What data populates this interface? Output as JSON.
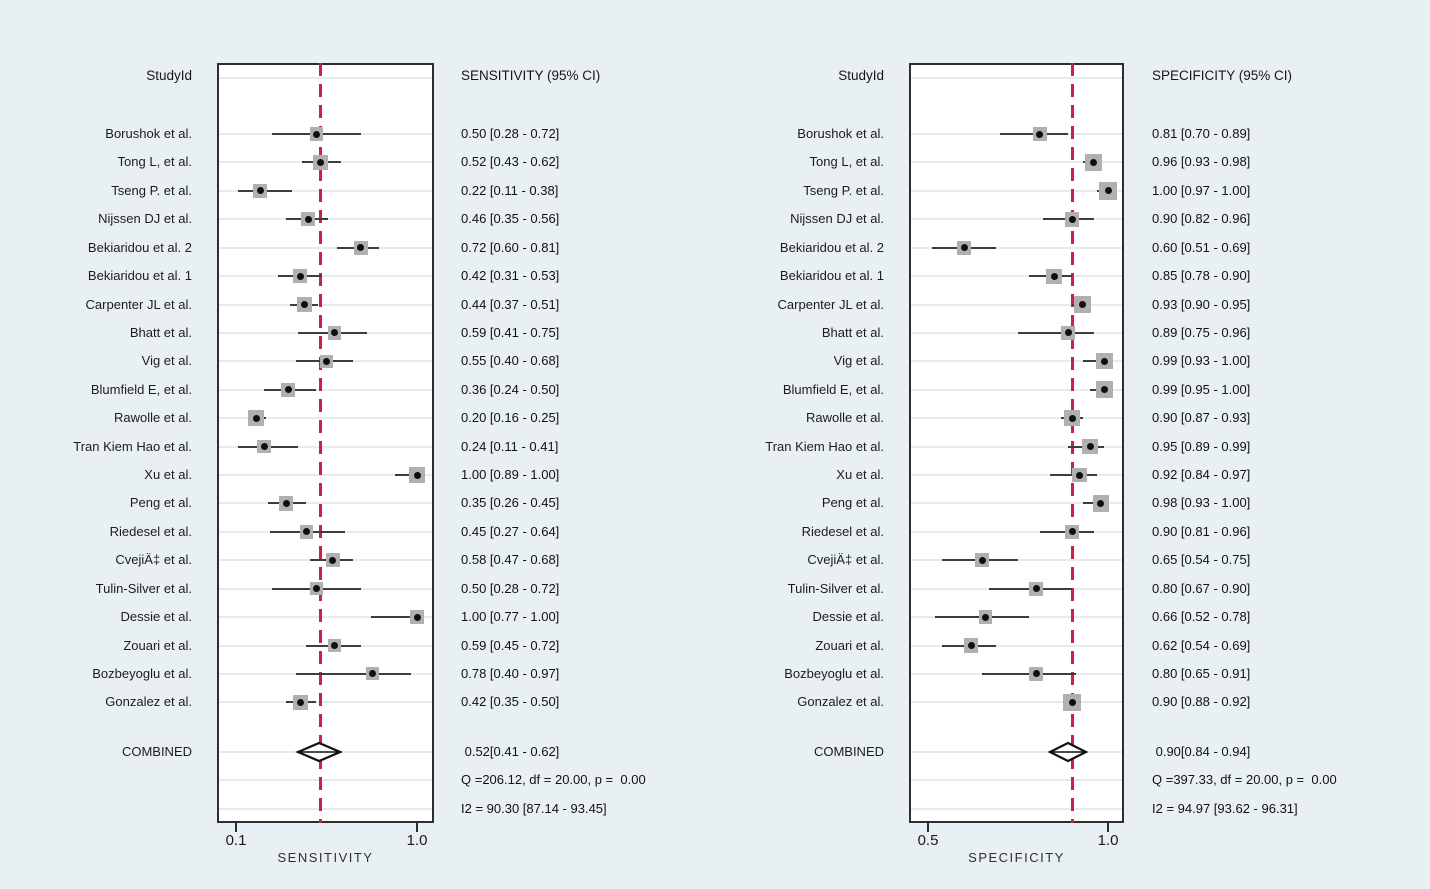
{
  "colors": {
    "background": "#e9f0f3",
    "plot_background": "#ffffff",
    "reference_line": "#c9234a",
    "marker_square": "#b0b0b0",
    "marker_dot": "#0f0f0f",
    "ci_line": "#3d3d3d",
    "gridline": "#e3edf1",
    "frame": "#2e2e2e"
  },
  "chart_data": [
    {
      "type": "forest",
      "title": "SENSITIVITY (95% CI)",
      "header_study": "StudyId",
      "header_value": "SENSITIVITY (95% CI)",
      "xlabel": "SENSITIVITY",
      "xticks": [
        {
          "value": 0.1,
          "label": "0.1"
        },
        {
          "value": 1.0,
          "label": "1.0"
        }
      ],
      "studies": [
        {
          "name": "Borushok et al.",
          "estimate": 0.5,
          "ci_low": 0.28,
          "ci_high": 0.72,
          "label": "0.50 [0.28 - 0.72]"
        },
        {
          "name": "Tong L, et al.",
          "estimate": 0.52,
          "ci_low": 0.43,
          "ci_high": 0.62,
          "label": "0.52 [0.43 - 0.62]"
        },
        {
          "name": "Tseng P. et al.",
          "estimate": 0.22,
          "ci_low": 0.11,
          "ci_high": 0.38,
          "label": "0.22 [0.11 - 0.38]"
        },
        {
          "name": "Nijssen DJ et al.",
          "estimate": 0.46,
          "ci_low": 0.35,
          "ci_high": 0.56,
          "label": "0.46 [0.35 - 0.56]"
        },
        {
          "name": "Bekiaridou et al. 2",
          "estimate": 0.72,
          "ci_low": 0.6,
          "ci_high": 0.81,
          "label": "0.72 [0.60 - 0.81]"
        },
        {
          "name": "Bekiaridou et al. 1",
          "estimate": 0.42,
          "ci_low": 0.31,
          "ci_high": 0.53,
          "label": "0.42 [0.31 - 0.53]"
        },
        {
          "name": "Carpenter JL et al.",
          "estimate": 0.44,
          "ci_low": 0.37,
          "ci_high": 0.51,
          "label": "0.44 [0.37 - 0.51]"
        },
        {
          "name": "Bhatt et al.",
          "estimate": 0.59,
          "ci_low": 0.41,
          "ci_high": 0.75,
          "label": "0.59 [0.41 - 0.75]"
        },
        {
          "name": "Vig et al.",
          "estimate": 0.55,
          "ci_low": 0.4,
          "ci_high": 0.68,
          "label": "0.55 [0.40 - 0.68]"
        },
        {
          "name": "Blumfield E, et al.",
          "estimate": 0.36,
          "ci_low": 0.24,
          "ci_high": 0.5,
          "label": "0.36 [0.24 - 0.50]"
        },
        {
          "name": "Rawolle et al.",
          "estimate": 0.2,
          "ci_low": 0.16,
          "ci_high": 0.25,
          "label": "0.20 [0.16 - 0.25]"
        },
        {
          "name": "Tran Kiem Hao et al.",
          "estimate": 0.24,
          "ci_low": 0.11,
          "ci_high": 0.41,
          "label": "0.24 [0.11 - 0.41]"
        },
        {
          "name": "Xu et al.",
          "estimate": 1.0,
          "ci_low": 0.89,
          "ci_high": 1.0,
          "label": "1.00 [0.89 - 1.00]"
        },
        {
          "name": "Peng et al.",
          "estimate": 0.35,
          "ci_low": 0.26,
          "ci_high": 0.45,
          "label": "0.35 [0.26 - 0.45]"
        },
        {
          "name": "Riedesel et al.",
          "estimate": 0.45,
          "ci_low": 0.27,
          "ci_high": 0.64,
          "label": "0.45 [0.27 - 0.64]"
        },
        {
          "name": "CvejiÄ‡ et al.",
          "estimate": 0.58,
          "ci_low": 0.47,
          "ci_high": 0.68,
          "label": "0.58 [0.47 - 0.68]"
        },
        {
          "name": "Tulin-Silver et al.",
          "estimate": 0.5,
          "ci_low": 0.28,
          "ci_high": 0.72,
          "label": "0.50 [0.28 - 0.72]"
        },
        {
          "name": "Dessie et al.",
          "estimate": 1.0,
          "ci_low": 0.77,
          "ci_high": 1.0,
          "label": "1.00 [0.77 - 1.00]"
        },
        {
          "name": "Zouari et al.",
          "estimate": 0.59,
          "ci_low": 0.45,
          "ci_high": 0.72,
          "label": "0.59 [0.45 - 0.72]"
        },
        {
          "name": "Bozbeyoglu et al.",
          "estimate": 0.78,
          "ci_low": 0.4,
          "ci_high": 0.97,
          "label": "0.78 [0.40 - 0.97]"
        },
        {
          "name": "Gonzalez et al.",
          "estimate": 0.42,
          "ci_low": 0.35,
          "ci_high": 0.5,
          "label": "0.42 [0.35 - 0.50]"
        }
      ],
      "combined": {
        "name": "COMBINED",
        "estimate": 0.52,
        "ci_low": 0.41,
        "ci_high": 0.62,
        "label": " 0.52[0.41 - 0.62]"
      },
      "heterogeneity": [
        "Q =206.12, df = 20.00, p =  0.00",
        "I2 = 90.30 [87.14 - 93.45]"
      ]
    },
    {
      "type": "forest",
      "title": "SPECIFICITY (95% CI)",
      "header_study": "StudyId",
      "header_value": "SPECIFICITY (95% CI)",
      "xlabel": "SPECIFICITY",
      "xticks": [
        {
          "value": 0.5,
          "label": "0.5"
        },
        {
          "value": 1.0,
          "label": "1.0"
        }
      ],
      "studies": [
        {
          "name": "Borushok et al.",
          "estimate": 0.81,
          "ci_low": 0.7,
          "ci_high": 0.89,
          "label": "0.81 [0.70 - 0.89]"
        },
        {
          "name": "Tong L, et al.",
          "estimate": 0.96,
          "ci_low": 0.93,
          "ci_high": 0.98,
          "label": "0.96 [0.93 - 0.98]"
        },
        {
          "name": "Tseng P. et al.",
          "estimate": 1.0,
          "ci_low": 0.97,
          "ci_high": 1.0,
          "label": "1.00 [0.97 - 1.00]"
        },
        {
          "name": "Nijssen DJ et al.",
          "estimate": 0.9,
          "ci_low": 0.82,
          "ci_high": 0.96,
          "label": "0.90 [0.82 - 0.96]"
        },
        {
          "name": "Bekiaridou et al. 2",
          "estimate": 0.6,
          "ci_low": 0.51,
          "ci_high": 0.69,
          "label": "0.60 [0.51 - 0.69]"
        },
        {
          "name": "Bekiaridou et al. 1",
          "estimate": 0.85,
          "ci_low": 0.78,
          "ci_high": 0.9,
          "label": "0.85 [0.78 - 0.90]"
        },
        {
          "name": "Carpenter JL et al.",
          "estimate": 0.93,
          "ci_low": 0.9,
          "ci_high": 0.95,
          "label": "0.93 [0.90 - 0.95]"
        },
        {
          "name": "Bhatt et al.",
          "estimate": 0.89,
          "ci_low": 0.75,
          "ci_high": 0.96,
          "label": "0.89 [0.75 - 0.96]"
        },
        {
          "name": "Vig et al.",
          "estimate": 0.99,
          "ci_low": 0.93,
          "ci_high": 1.0,
          "label": "0.99 [0.93 - 1.00]"
        },
        {
          "name": "Blumfield E, et al.",
          "estimate": 0.99,
          "ci_low": 0.95,
          "ci_high": 1.0,
          "label": "0.99 [0.95 - 1.00]"
        },
        {
          "name": "Rawolle et al.",
          "estimate": 0.9,
          "ci_low": 0.87,
          "ci_high": 0.93,
          "label": "0.90 [0.87 - 0.93]"
        },
        {
          "name": "Tran Kiem Hao et al.",
          "estimate": 0.95,
          "ci_low": 0.89,
          "ci_high": 0.99,
          "label": "0.95 [0.89 - 0.99]"
        },
        {
          "name": "Xu et al.",
          "estimate": 0.92,
          "ci_low": 0.84,
          "ci_high": 0.97,
          "label": "0.92 [0.84 - 0.97]"
        },
        {
          "name": "Peng et al.",
          "estimate": 0.98,
          "ci_low": 0.93,
          "ci_high": 1.0,
          "label": "0.98 [0.93 - 1.00]"
        },
        {
          "name": "Riedesel et al.",
          "estimate": 0.9,
          "ci_low": 0.81,
          "ci_high": 0.96,
          "label": "0.90 [0.81 - 0.96]"
        },
        {
          "name": "CvejiÄ‡ et al.",
          "estimate": 0.65,
          "ci_low": 0.54,
          "ci_high": 0.75,
          "label": "0.65 [0.54 - 0.75]"
        },
        {
          "name": "Tulin-Silver et al.",
          "estimate": 0.8,
          "ci_low": 0.67,
          "ci_high": 0.9,
          "label": "0.80 [0.67 - 0.90]"
        },
        {
          "name": "Dessie et al.",
          "estimate": 0.66,
          "ci_low": 0.52,
          "ci_high": 0.78,
          "label": "0.66 [0.52 - 0.78]"
        },
        {
          "name": "Zouari et al.",
          "estimate": 0.62,
          "ci_low": 0.54,
          "ci_high": 0.69,
          "label": "0.62 [0.54 - 0.69]"
        },
        {
          "name": "Bozbeyoglu et al.",
          "estimate": 0.8,
          "ci_low": 0.65,
          "ci_high": 0.91,
          "label": "0.80 [0.65 - 0.91]"
        },
        {
          "name": "Gonzalez et al.",
          "estimate": 0.9,
          "ci_low": 0.88,
          "ci_high": 0.92,
          "label": "0.90 [0.88 - 0.92]"
        }
      ],
      "combined": {
        "name": "COMBINED",
        "estimate": 0.9,
        "ci_low": 0.84,
        "ci_high": 0.94,
        "label": " 0.90[0.84 - 0.94]"
      },
      "heterogeneity": [
        "Q =397.33, df = 20.00, p =  0.00",
        "I2 = 94.97 [93.62 - 96.31]"
      ]
    }
  ]
}
